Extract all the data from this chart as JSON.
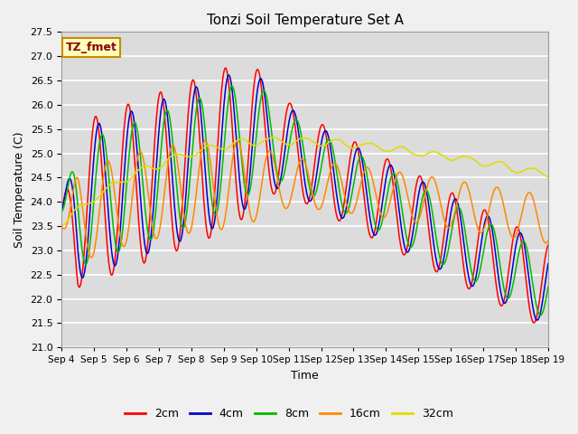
{
  "title": "Tonzi Soil Temperature Set A",
  "xlabel": "Time",
  "ylabel": "Soil Temperature (C)",
  "ylim": [
    21.0,
    27.5
  ],
  "label_text": "TZ_fmet",
  "line_colors": [
    "#ff0000",
    "#0000cc",
    "#00bb00",
    "#ff8800",
    "#dddd00"
  ],
  "line_labels": [
    "2cm",
    "4cm",
    "8cm",
    "16cm",
    "32cm"
  ],
  "fig_bg": "#f0f0f0",
  "plot_bg": "#dcdcdc",
  "xtick_labels": [
    "Sep 4",
    "Sep 5",
    "Sep 6",
    "Sep 7",
    "Sep 8",
    "Sep 9",
    "Sep 10",
    "Sep 11",
    "Sep 12",
    "Sep 13",
    "Sep 14",
    "Sep 15",
    "Sep 16",
    "Sep 17",
    "Sep 18",
    "Sep 19"
  ],
  "n_days": 15,
  "points_per_day": 48
}
